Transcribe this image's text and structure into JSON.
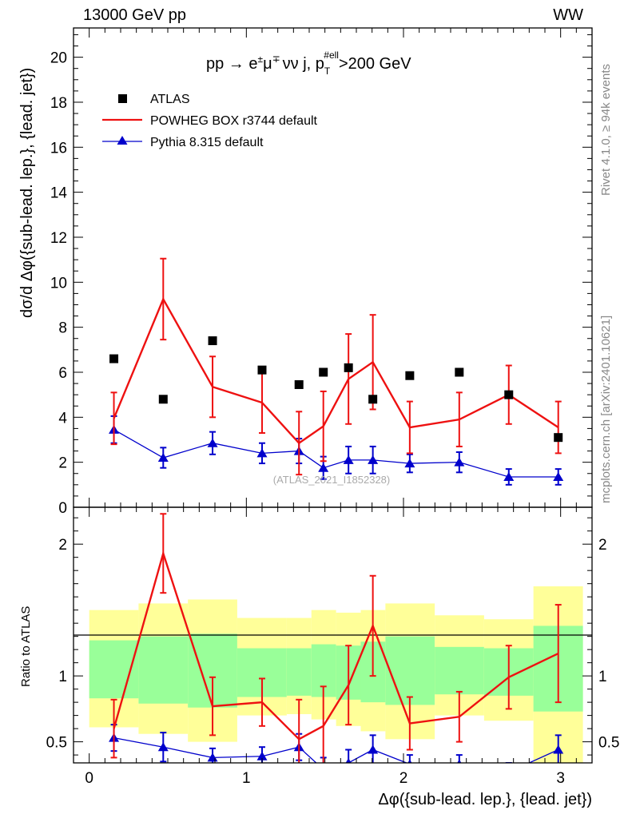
{
  "header": {
    "energy_label": "13000 GeV pp",
    "process_label": "WW"
  },
  "side_labels": {
    "rivet": "Rivet 4.1.0, ≥ 94k events",
    "mcplots": "mcplots.cern.ch [arXiv:2401.10621]"
  },
  "watermark": "(ATLAS_2021_I1852328)",
  "colors": {
    "atlas": "#000000",
    "powheg": "#ee1111",
    "pythia": "#0000cc",
    "band_outer": "#ffff99",
    "band_inner": "#99ff99"
  },
  "chart_data": [
    {
      "type": "line",
      "panel": "main",
      "title_parts": {
        "pre": "pp  →  e",
        "pm": "±",
        "mu": "μ",
        "mp": "∓",
        "post": "νν j, p",
        "sub": "T",
        "sup": "#ell",
        "tail": ">200 GeV"
      },
      "ylabel": "dσ/d Δφ({sub-lead. lep.}, {lead. jet})",
      "xlim": [
        -0.1,
        3.2
      ],
      "ylim": [
        0,
        21.3
      ],
      "yticks": [
        0,
        2,
        4,
        6,
        8,
        10,
        12,
        14,
        16,
        18,
        20
      ],
      "x": [
        0.157,
        0.471,
        0.785,
        1.1,
        1.335,
        1.49,
        1.65,
        1.805,
        2.04,
        2.355,
        2.67,
        2.985
      ],
      "series": [
        {
          "name": "ATLAS",
          "style": "markers-square",
          "values": [
            6.6,
            4.8,
            7.4,
            6.1,
            5.45,
            6.0,
            6.2,
            4.8,
            5.85,
            6.0,
            5.0,
            3.1
          ]
        },
        {
          "name": "POWHEG BOX r3744 default",
          "style": "line-errors",
          "values": [
            3.95,
            9.25,
            5.35,
            4.65,
            2.85,
            3.6,
            5.7,
            6.45,
            3.55,
            3.9,
            5.0,
            3.55
          ],
          "errors": [
            1.15,
            1.8,
            1.35,
            1.35,
            1.4,
            1.55,
            2.0,
            2.1,
            1.15,
            1.2,
            1.3,
            1.15
          ]
        },
        {
          "name": "Pythia 8.315 default",
          "style": "line-triangles",
          "values": [
            3.45,
            2.2,
            2.85,
            2.4,
            2.5,
            1.75,
            2.1,
            2.1,
            1.95,
            2.0,
            1.35,
            1.35
          ],
          "errors": [
            0.6,
            0.45,
            0.5,
            0.45,
            0.55,
            0.5,
            0.6,
            0.6,
            0.4,
            0.45,
            0.35,
            0.35
          ]
        }
      ]
    },
    {
      "type": "line",
      "panel": "ratio",
      "ylabel": "Ratio to ATLAS",
      "xlabel": "Δφ({sub-lead. lep.}, {lead. jet})",
      "xlim": [
        -0.1,
        3.2
      ],
      "ylim": [
        0.34,
        2.28
      ],
      "yticks": [
        0.5,
        1,
        2
      ],
      "xticks": [
        0,
        1,
        2,
        3
      ],
      "bin_edges": [
        0,
        0.314,
        0.628,
        0.942,
        1.257,
        1.414,
        1.571,
        1.728,
        1.885,
        2.199,
        2.513,
        2.827,
        3.142
      ],
      "band_outer": {
        "lo": [
          0.61,
          0.56,
          0.5,
          0.7,
          0.71,
          0.67,
          0.62,
          0.58,
          0.52,
          0.7,
          0.66,
          0.34
        ],
        "hi": [
          1.5,
          1.55,
          1.58,
          1.44,
          1.44,
          1.5,
          1.48,
          1.5,
          1.55,
          1.46,
          1.43,
          1.68
        ]
      },
      "band_inner": {
        "lo": [
          0.83,
          0.79,
          0.76,
          0.84,
          0.85,
          0.84,
          0.82,
          0.8,
          0.78,
          0.86,
          0.85,
          0.73
        ],
        "hi": [
          1.27,
          1.3,
          1.32,
          1.21,
          1.21,
          1.24,
          1.23,
          1.26,
          1.3,
          1.22,
          1.21,
          1.38
        ]
      },
      "series": [
        {
          "name": "POWHEG BOX r3744 default",
          "values": [
            0.6,
            1.93,
            0.77,
            0.8,
            0.52,
            0.62,
            0.93,
            1.38,
            0.64,
            0.69,
            0.99,
            1.17
          ],
          "errors": [
            0.22,
            0.3,
            0.22,
            0.18,
            0.3,
            0.3,
            0.3,
            0.38,
            0.2,
            0.19,
            0.24,
            0.37
          ]
        },
        {
          "name": "Pythia 8.315 default",
          "values": [
            0.53,
            0.46,
            0.38,
            0.39,
            0.46,
            0.29,
            0.34,
            0.44,
            0.33,
            0.33,
            0.27,
            0.44
          ],
          "errors": [
            0.1,
            0.11,
            0.07,
            0.07,
            0.1,
            0.09,
            0.1,
            0.11,
            0.07,
            0.07,
            0.07,
            0.11
          ]
        }
      ]
    }
  ]
}
